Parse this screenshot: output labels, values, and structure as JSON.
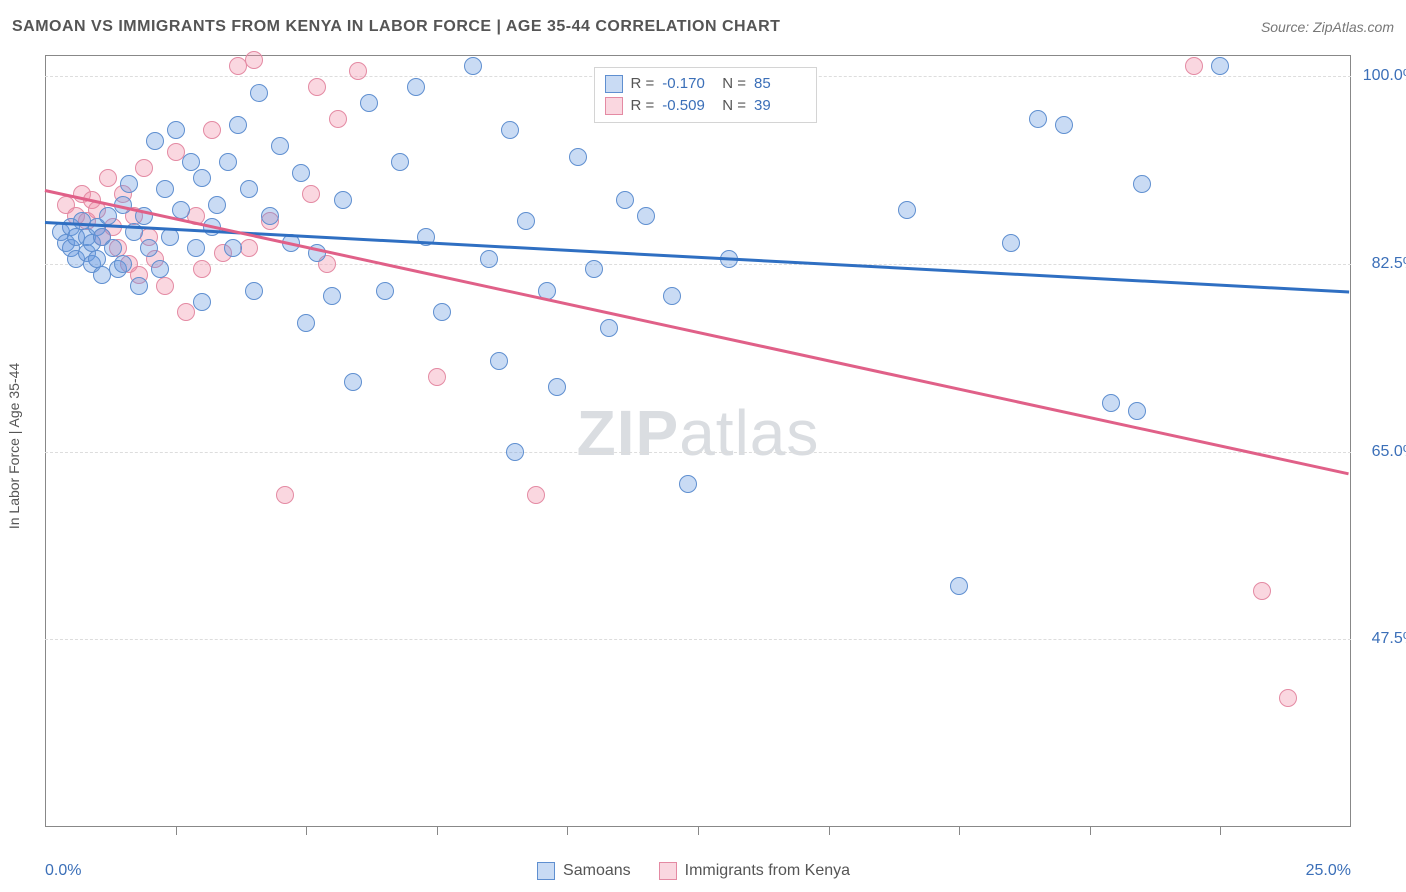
{
  "header": {
    "title": "SAMOAN VS IMMIGRANTS FROM KENYA IN LABOR FORCE | AGE 35-44 CORRELATION CHART",
    "source": "Source: ZipAtlas.com"
  },
  "watermark": {
    "left": "ZIP",
    "right": "atlas"
  },
  "chart": {
    "type": "scatter-with-regression",
    "ylabel": "In Labor Force | Age 35-44",
    "background_color": "#ffffff",
    "grid_color": "#dddddd",
    "border_color": "#888888",
    "xlim": [
      0,
      25
    ],
    "ylim": [
      30,
      102
    ],
    "x_left_label": "0.0%",
    "x_right_label": "25.0%",
    "yticks": [
      {
        "v": 100.0,
        "label": "100.0%"
      },
      {
        "v": 82.5,
        "label": "82.5%"
      },
      {
        "v": 65.0,
        "label": "65.0%"
      },
      {
        "v": 47.5,
        "label": "47.5%"
      }
    ],
    "xticks_minor": [
      2.5,
      5,
      7.5,
      10,
      12.5,
      15,
      17.5,
      20,
      22.5
    ],
    "tick_label_color": "#3b6fb8",
    "axis_label_color": "#555555",
    "marker_radius": 9,
    "marker_border_width": 1,
    "series": [
      {
        "name": "Samoans",
        "fill_color": "rgba(99,151,224,0.35)",
        "stroke_color": "#5f8fd0",
        "line_color": "#2f6fc2",
        "R": "-0.170",
        "N": "85",
        "regression": {
          "x1": 0,
          "y1": 86.5,
          "x2": 25,
          "y2": 80.0
        },
        "points": [
          [
            0.3,
            85.5
          ],
          [
            0.4,
            84.5
          ],
          [
            0.5,
            86.0
          ],
          [
            0.5,
            84.0
          ],
          [
            0.6,
            85.0
          ],
          [
            0.6,
            83.0
          ],
          [
            0.7,
            86.5
          ],
          [
            0.8,
            85.0
          ],
          [
            0.8,
            83.5
          ],
          [
            0.9,
            84.5
          ],
          [
            0.9,
            82.5
          ],
          [
            1.0,
            86.0
          ],
          [
            1.0,
            83.0
          ],
          [
            1.1,
            85.0
          ],
          [
            1.1,
            81.5
          ],
          [
            1.2,
            87.0
          ],
          [
            1.3,
            84.0
          ],
          [
            1.4,
            82.0
          ],
          [
            1.5,
            88.0
          ],
          [
            1.5,
            82.5
          ],
          [
            1.6,
            90.0
          ],
          [
            1.7,
            85.5
          ],
          [
            1.8,
            80.5
          ],
          [
            1.9,
            87.0
          ],
          [
            2.0,
            84.0
          ],
          [
            2.1,
            94.0
          ],
          [
            2.2,
            82.0
          ],
          [
            2.3,
            89.5
          ],
          [
            2.4,
            85.0
          ],
          [
            2.5,
            95.0
          ],
          [
            2.6,
            87.5
          ],
          [
            2.8,
            92.0
          ],
          [
            2.9,
            84.0
          ],
          [
            3.0,
            79.0
          ],
          [
            3.0,
            90.5
          ],
          [
            3.2,
            86.0
          ],
          [
            3.3,
            88.0
          ],
          [
            3.5,
            92.0
          ],
          [
            3.6,
            84.0
          ],
          [
            3.7,
            95.5
          ],
          [
            3.9,
            89.5
          ],
          [
            4.0,
            80.0
          ],
          [
            4.1,
            98.5
          ],
          [
            4.3,
            87.0
          ],
          [
            4.5,
            93.5
          ],
          [
            4.7,
            84.5
          ],
          [
            4.9,
            91.0
          ],
          [
            5.0,
            77.0
          ],
          [
            5.2,
            83.5
          ],
          [
            5.5,
            79.5
          ],
          [
            5.7,
            88.5
          ],
          [
            5.9,
            71.5
          ],
          [
            6.2,
            97.5
          ],
          [
            6.5,
            80.0
          ],
          [
            6.8,
            92.0
          ],
          [
            7.1,
            99.0
          ],
          [
            7.3,
            85.0
          ],
          [
            7.6,
            78.0
          ],
          [
            8.2,
            101.0
          ],
          [
            8.5,
            83.0
          ],
          [
            8.7,
            73.5
          ],
          [
            8.9,
            95.0
          ],
          [
            9.0,
            65.0
          ],
          [
            9.2,
            86.5
          ],
          [
            9.6,
            80.0
          ],
          [
            9.8,
            71.0
          ],
          [
            10.2,
            92.5
          ],
          [
            10.5,
            82.0
          ],
          [
            10.8,
            76.5
          ],
          [
            11.1,
            88.5
          ],
          [
            11.5,
            87.0
          ],
          [
            12.0,
            79.5
          ],
          [
            12.3,
            62.0
          ],
          [
            12.5,
            100.0
          ],
          [
            13.1,
            83.0
          ],
          [
            13.5,
            99.5
          ],
          [
            16.5,
            87.5
          ],
          [
            17.5,
            52.5
          ],
          [
            18.5,
            84.5
          ],
          [
            19.0,
            96.0
          ],
          [
            19.5,
            95.5
          ],
          [
            20.4,
            69.5
          ],
          [
            20.9,
            68.8
          ],
          [
            21.0,
            90.0
          ],
          [
            22.5,
            101.0
          ]
        ]
      },
      {
        "name": "Immigrants from Kenya",
        "fill_color": "rgba(240,140,165,0.35)",
        "stroke_color": "#e48aa3",
        "line_color": "#e06088",
        "R": "-0.509",
        "N": "39",
        "regression": {
          "x1": 0,
          "y1": 89.5,
          "x2": 25,
          "y2": 63.0
        },
        "points": [
          [
            0.4,
            88.0
          ],
          [
            0.6,
            87.0
          ],
          [
            0.7,
            89.0
          ],
          [
            0.8,
            86.5
          ],
          [
            0.9,
            88.5
          ],
          [
            1.0,
            87.5
          ],
          [
            1.1,
            85.0
          ],
          [
            1.2,
            90.5
          ],
          [
            1.3,
            86.0
          ],
          [
            1.4,
            84.0
          ],
          [
            1.5,
            89.0
          ],
          [
            1.6,
            82.5
          ],
          [
            1.7,
            87.0
          ],
          [
            1.8,
            81.5
          ],
          [
            1.9,
            91.5
          ],
          [
            2.0,
            85.0
          ],
          [
            2.1,
            83.0
          ],
          [
            2.3,
            80.5
          ],
          [
            2.5,
            93.0
          ],
          [
            2.7,
            78.0
          ],
          [
            2.9,
            87.0
          ],
          [
            3.0,
            82.0
          ],
          [
            3.2,
            95.0
          ],
          [
            3.4,
            83.5
          ],
          [
            3.7,
            101.0
          ],
          [
            3.9,
            84.0
          ],
          [
            4.0,
            101.5
          ],
          [
            4.3,
            86.5
          ],
          [
            4.6,
            61.0
          ],
          [
            5.1,
            89.0
          ],
          [
            5.2,
            99.0
          ],
          [
            5.4,
            82.5
          ],
          [
            5.6,
            96.0
          ],
          [
            6.0,
            100.5
          ],
          [
            7.5,
            72.0
          ],
          [
            9.4,
            61.0
          ],
          [
            22.0,
            101.0
          ],
          [
            23.3,
            52.0
          ],
          [
            23.8,
            42.0
          ]
        ]
      }
    ],
    "legend_box": {
      "left_pct": 42,
      "top_pct": 1.5
    },
    "bottom_legend": [
      {
        "swatch_fill": "rgba(99,151,224,0.35)",
        "swatch_border": "#5f8fd0",
        "label": "Samoans"
      },
      {
        "swatch_fill": "rgba(240,140,165,0.35)",
        "swatch_border": "#e48aa3",
        "label": "Immigrants from Kenya"
      }
    ]
  }
}
